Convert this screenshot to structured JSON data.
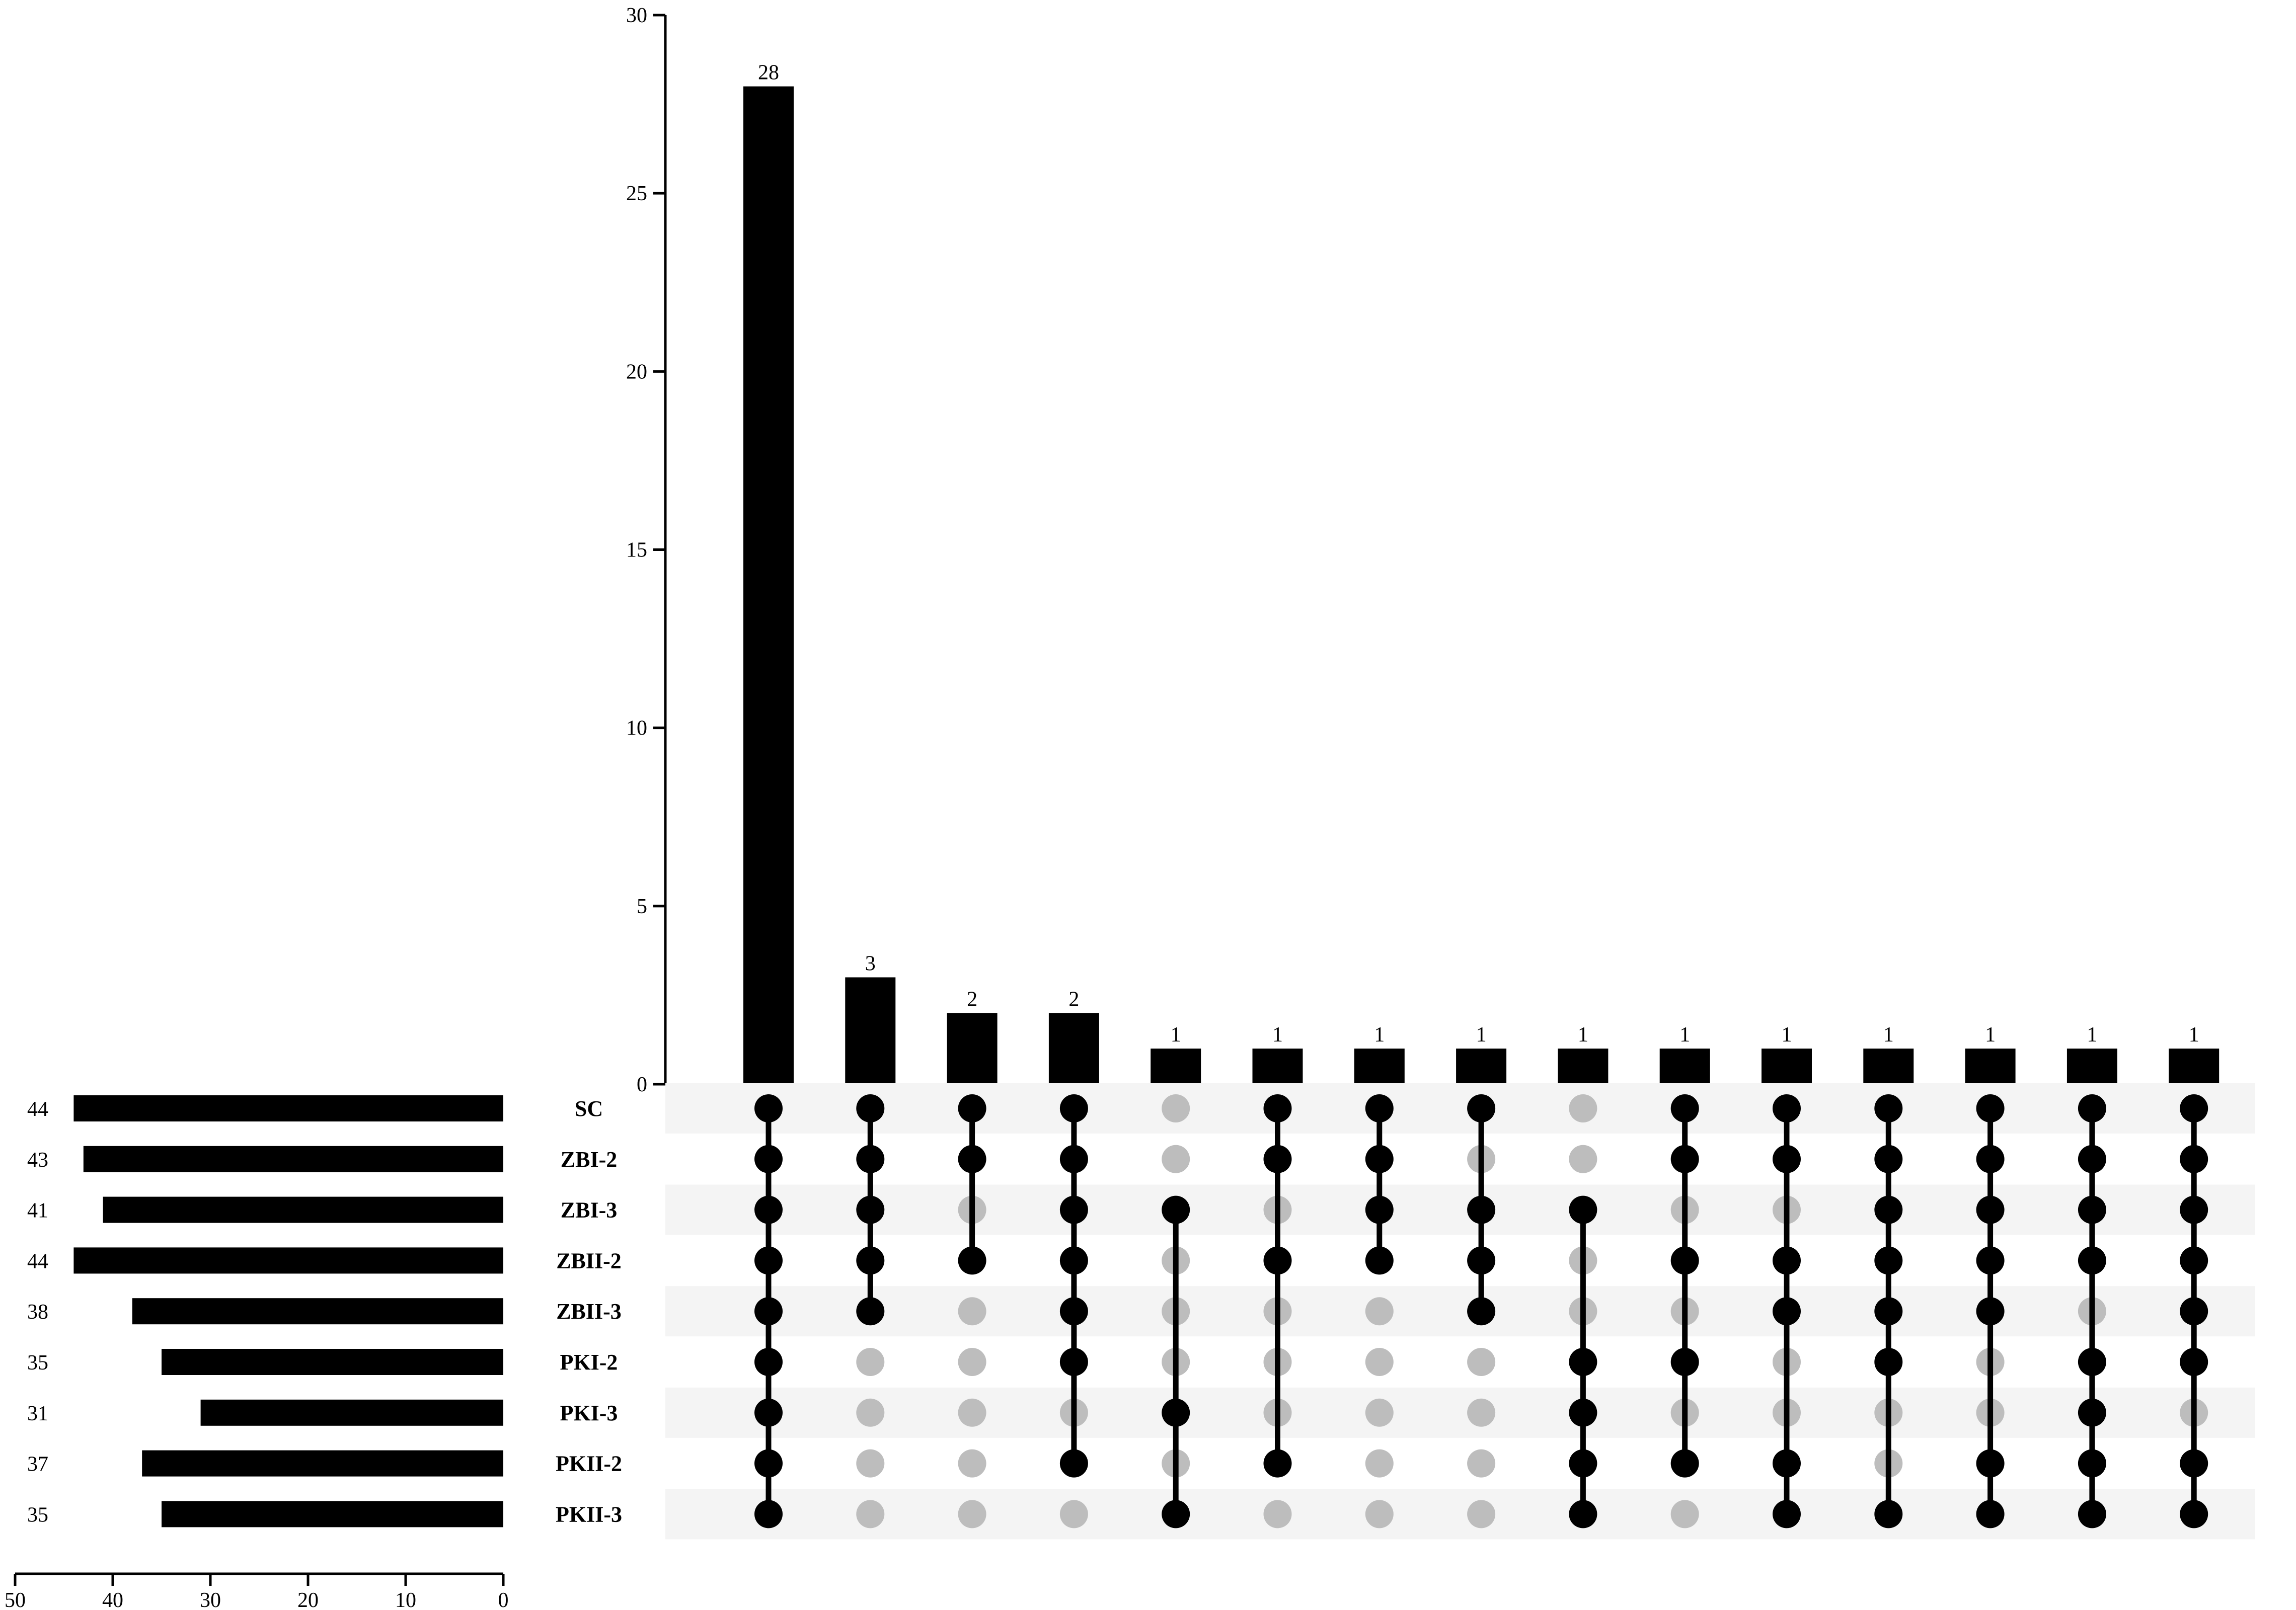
{
  "chart_data": {
    "type": "bar",
    "subtype": "upset",
    "title": "",
    "xlabel": "",
    "ylabel": "",
    "ylim": [
      0,
      30
    ],
    "y_ticks": [
      0,
      5,
      10,
      15,
      20,
      25,
      30
    ],
    "set_size_ticks": [
      50,
      40,
      30,
      20,
      10,
      0
    ],
    "set_size_xlim": [
      50,
      0
    ],
    "sets": [
      {
        "name": "SC",
        "size": 44
      },
      {
        "name": "ZBI-2",
        "size": 43
      },
      {
        "name": "ZBI-3",
        "size": 41
      },
      {
        "name": "ZBII-2",
        "size": 44
      },
      {
        "name": "ZBII-3",
        "size": 38
      },
      {
        "name": "PKI-2",
        "size": 35
      },
      {
        "name": "PKI-3",
        "size": 31
      },
      {
        "name": "PKII-2",
        "size": 37
      },
      {
        "name": "PKII-3",
        "size": 35
      }
    ],
    "intersections": [
      {
        "value": 28,
        "members": [
          1,
          1,
          1,
          1,
          1,
          1,
          1,
          1,
          1
        ]
      },
      {
        "value": 3,
        "members": [
          1,
          1,
          1,
          1,
          1,
          0,
          0,
          0,
          0
        ]
      },
      {
        "value": 2,
        "members": [
          1,
          1,
          0,
          1,
          0,
          0,
          0,
          0,
          0
        ]
      },
      {
        "value": 2,
        "members": [
          1,
          1,
          1,
          1,
          1,
          1,
          0,
          1,
          0
        ]
      },
      {
        "value": 1,
        "members": [
          0,
          0,
          1,
          0,
          0,
          0,
          1,
          0,
          1
        ]
      },
      {
        "value": 1,
        "members": [
          1,
          1,
          0,
          1,
          0,
          0,
          0,
          1,
          0
        ]
      },
      {
        "value": 1,
        "members": [
          1,
          1,
          1,
          1,
          0,
          0,
          0,
          0,
          0
        ]
      },
      {
        "value": 1,
        "members": [
          1,
          0,
          1,
          1,
          1,
          0,
          0,
          0,
          0
        ]
      },
      {
        "value": 1,
        "members": [
          0,
          0,
          1,
          0,
          0,
          1,
          1,
          1,
          1
        ]
      },
      {
        "value": 1,
        "members": [
          1,
          1,
          0,
          1,
          0,
          1,
          0,
          1,
          0
        ]
      },
      {
        "value": 1,
        "members": [
          1,
          1,
          0,
          1,
          1,
          0,
          0,
          1,
          1
        ]
      },
      {
        "value": 1,
        "members": [
          1,
          1,
          1,
          1,
          1,
          1,
          0,
          0,
          1
        ]
      },
      {
        "value": 1,
        "members": [
          1,
          1,
          1,
          1,
          1,
          0,
          0,
          1,
          1
        ]
      },
      {
        "value": 1,
        "members": [
          1,
          1,
          1,
          1,
          0,
          1,
          1,
          1,
          1
        ]
      },
      {
        "value": 1,
        "members": [
          1,
          1,
          1,
          1,
          1,
          1,
          0,
          1,
          1
        ]
      }
    ],
    "colors": {
      "bar": "#000000",
      "dot_on": "#000000",
      "dot_off": "#bdbdbd",
      "row_shade": "#f4f4f4"
    }
  }
}
